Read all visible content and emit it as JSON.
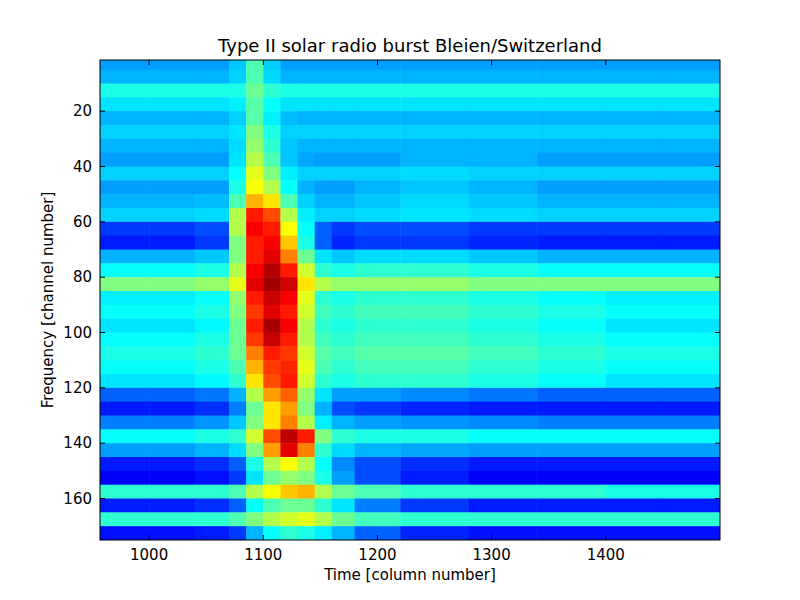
{
  "chart_data": {
    "type": "heatmap",
    "title": "Type II solar radio burst Bleien/Switzerland",
    "x_label": "Time [column number]",
    "y_label": "Frequency [channel number]",
    "color": "jet",
    "color_range": [
      0,
      100
    ],
    "xlim": [
      957,
      1500
    ],
    "ylim": [
      175,
      1.5
    ],
    "xticks": [
      1000,
      1100,
      1200,
      1300,
      1400
    ],
    "yticks": [
      20,
      40,
      60,
      80,
      100,
      120,
      140,
      160
    ],
    "x_edges": [
      957,
      1000,
      1040,
      1070,
      1085,
      1100,
      1115,
      1130,
      1145,
      1160,
      1180,
      1220,
      1280,
      1340,
      1400,
      1450,
      1500
    ],
    "y_edges": [
      0,
      5,
      10,
      15,
      20,
      25,
      30,
      35,
      40,
      45,
      50,
      55,
      60,
      65,
      70,
      75,
      80,
      85,
      90,
      95,
      100,
      105,
      110,
      115,
      120,
      125,
      130,
      135,
      140,
      145,
      150,
      155,
      160,
      165,
      170,
      175
    ],
    "cells": [
      [
        28,
        28,
        28,
        32,
        45,
        33,
        28,
        28,
        28,
        28,
        28,
        28,
        28,
        28,
        28,
        28
      ],
      [
        30,
        30,
        30,
        33,
        45,
        34,
        30,
        30,
        30,
        30,
        30,
        30,
        30,
        30,
        30,
        30
      ],
      [
        40,
        40,
        40,
        40,
        48,
        42,
        40,
        40,
        40,
        40,
        40,
        40,
        40,
        40,
        40,
        40
      ],
      [
        35,
        35,
        35,
        36,
        46,
        38,
        35,
        35,
        35,
        35,
        35,
        35,
        35,
        35,
        35,
        35
      ],
      [
        30,
        30,
        30,
        33,
        46,
        36,
        31,
        30,
        30,
        30,
        30,
        30,
        30,
        30,
        30,
        30
      ],
      [
        33,
        33,
        33,
        35,
        50,
        40,
        33,
        33,
        33,
        33,
        33,
        33,
        33,
        33,
        33,
        33
      ],
      [
        30,
        30,
        30,
        34,
        52,
        42,
        32,
        30,
        30,
        30,
        30,
        30,
        30,
        30,
        30,
        30
      ],
      [
        28,
        28,
        28,
        35,
        55,
        45,
        32,
        29,
        28,
        28,
        28,
        30,
        30,
        28,
        28,
        28
      ],
      [
        33,
        33,
        33,
        38,
        60,
        50,
        36,
        33,
        33,
        33,
        33,
        34,
        33,
        33,
        33,
        33
      ],
      [
        28,
        28,
        28,
        40,
        62,
        55,
        38,
        30,
        28,
        28,
        30,
        32,
        30,
        28,
        28,
        28
      ],
      [
        30,
        30,
        31,
        45,
        70,
        65,
        45,
        33,
        30,
        30,
        32,
        34,
        32,
        30,
        30,
        30
      ],
      [
        33,
        33,
        34,
        55,
        85,
        80,
        55,
        36,
        33,
        33,
        34,
        35,
        34,
        33,
        33,
        33
      ],
      [
        18,
        18,
        20,
        55,
        88,
        85,
        62,
        38,
        22,
        18,
        20,
        20,
        18,
        18,
        18,
        18
      ],
      [
        15,
        15,
        18,
        50,
        85,
        88,
        68,
        40,
        22,
        16,
        18,
        18,
        16,
        15,
        15,
        15
      ],
      [
        30,
        30,
        32,
        50,
        85,
        90,
        75,
        48,
        35,
        32,
        34,
        34,
        32,
        30,
        30,
        30
      ],
      [
        38,
        38,
        40,
        55,
        88,
        95,
        85,
        58,
        42,
        40,
        42,
        42,
        40,
        38,
        38,
        38
      ],
      [
        50,
        50,
        52,
        60,
        90,
        97,
        92,
        65,
        55,
        52,
        52,
        52,
        50,
        50,
        50,
        50
      ],
      [
        36,
        36,
        38,
        52,
        85,
        93,
        88,
        60,
        42,
        40,
        42,
        42,
        40,
        38,
        36,
        36
      ],
      [
        38,
        38,
        40,
        50,
        82,
        90,
        85,
        58,
        44,
        42,
        44,
        44,
        42,
        40,
        38,
        38
      ],
      [
        35,
        35,
        37,
        48,
        85,
        96,
        88,
        55,
        42,
        40,
        42,
        42,
        40,
        38,
        35,
        35
      ],
      [
        38,
        38,
        40,
        48,
        82,
        93,
        85,
        55,
        44,
        42,
        44,
        44,
        42,
        40,
        38,
        38
      ],
      [
        40,
        40,
        42,
        48,
        75,
        85,
        82,
        58,
        46,
        44,
        46,
        46,
        44,
        42,
        40,
        40
      ],
      [
        38,
        38,
        40,
        45,
        70,
        82,
        84,
        60,
        45,
        42,
        44,
        44,
        42,
        40,
        38,
        38
      ],
      [
        35,
        35,
        37,
        42,
        65,
        80,
        85,
        58,
        42,
        40,
        42,
        42,
        40,
        38,
        35,
        35
      ],
      [
        22,
        22,
        24,
        30,
        55,
        72,
        78,
        52,
        35,
        28,
        28,
        26,
        24,
        22,
        22,
        22
      ],
      [
        15,
        15,
        17,
        25,
        48,
        65,
        72,
        50,
        30,
        20,
        18,
        16,
        15,
        15,
        15,
        15
      ],
      [
        25,
        25,
        27,
        32,
        50,
        65,
        75,
        55,
        36,
        30,
        28,
        27,
        26,
        25,
        25,
        25
      ],
      [
        38,
        38,
        40,
        42,
        58,
        80,
        94,
        85,
        50,
        42,
        40,
        40,
        38,
        38,
        38,
        38
      ],
      [
        28,
        28,
        30,
        34,
        50,
        72,
        90,
        75,
        42,
        34,
        30,
        29,
        28,
        28,
        28,
        28
      ],
      [
        15,
        15,
        17,
        22,
        40,
        55,
        62,
        55,
        38,
        26,
        20,
        17,
        15,
        15,
        15,
        15
      ],
      [
        12,
        12,
        14,
        18,
        35,
        48,
        52,
        50,
        40,
        28,
        20,
        15,
        12,
        12,
        12,
        12
      ],
      [
        42,
        42,
        42,
        45,
        55,
        62,
        68,
        70,
        55,
        48,
        45,
        42,
        42,
        42,
        40,
        40
      ],
      [
        15,
        15,
        17,
        22,
        38,
        45,
        48,
        48,
        42,
        35,
        25,
        18,
        15,
        15,
        15,
        15
      ],
      [
        42,
        42,
        42,
        45,
        50,
        55,
        58,
        60,
        55,
        48,
        44,
        42,
        42,
        42,
        42,
        42
      ],
      [
        14,
        14,
        15,
        18,
        30,
        38,
        42,
        40,
        36,
        30,
        22,
        16,
        14,
        14,
        14,
        14
      ]
    ]
  }
}
